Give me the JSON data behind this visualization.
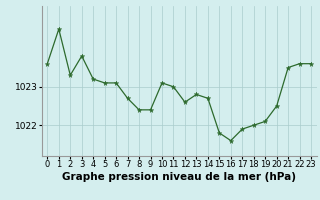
{
  "x": [
    0,
    1,
    2,
    3,
    4,
    5,
    6,
    7,
    8,
    9,
    10,
    11,
    12,
    13,
    14,
    15,
    16,
    17,
    18,
    19,
    20,
    21,
    22,
    23
  ],
  "y": [
    1023.6,
    1024.5,
    1023.3,
    1023.8,
    1023.2,
    1023.1,
    1023.1,
    1022.7,
    1022.4,
    1022.4,
    1023.1,
    1023.0,
    1022.6,
    1022.8,
    1022.7,
    1021.8,
    1021.6,
    1021.9,
    1022.0,
    1022.1,
    1022.5,
    1023.5,
    1023.6,
    1023.6
  ],
  "line_color": "#2d6a2d",
  "marker_color": "#2d6a2d",
  "bg_color": "#d4eeee",
  "grid_color": "#aacccc",
  "ylabel_ticks": [
    1022,
    1023
  ],
  "xlabel": "Graphe pression niveau de la mer (hPa)",
  "ylim_min": 1021.2,
  "ylim_max": 1025.1,
  "xlabel_fontsize": 7.5,
  "tick_fontsize": 6.5
}
